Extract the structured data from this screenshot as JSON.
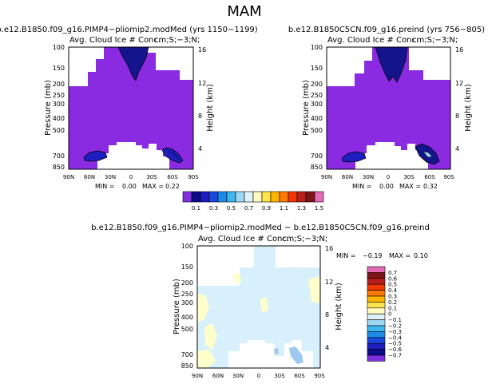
{
  "figure_title": "MAM",
  "chart_data": [
    {
      "type": "heatmap",
      "title": "b.e12.B1850.f09_g16.PIMP4−pliomip2.modMed (yrs 1150−1199)",
      "subtitle": "Avg. Cloud Ice # Conc.",
      "units": "cm;S;−3;N;",
      "x_ticks": [
        "90N",
        "60N",
        "30N",
        "0",
        "30S",
        "60S",
        "90S"
      ],
      "y_ticks": [
        "100",
        "150",
        "200",
        "250",
        "300",
        "400",
        "500",
        "700",
        "850"
      ],
      "ylabel": "Pressure (mb)",
      "y2_ticks": [
        "16",
        "12",
        "8",
        "4"
      ],
      "y2label": "Height (km)",
      "min_label": "MIN =",
      "min": "0.00",
      "max_label": "MAX =",
      "max": "0.22",
      "grid": false
    },
    {
      "type": "heatmap",
      "title": "b.e12.B1850C5CN.f09_g16.preind (yrs 756−805)",
      "subtitle": "Avg. Cloud Ice # Conc.",
      "units": "cm;S;−3;N;",
      "x_ticks": [
        "90N",
        "60N",
        "30N",
        "0",
        "30S",
        "60S",
        "90S"
      ],
      "y_ticks": [
        "100",
        "150",
        "200",
        "250",
        "300",
        "400",
        "500",
        "700",
        "850"
      ],
      "ylabel": "Pressure (mb)",
      "y2_ticks": [
        "16",
        "12",
        "8",
        "4"
      ],
      "y2label": "Height (km)",
      "min_label": "MIN =",
      "min": "0.00",
      "max_label": "MAX =",
      "max": "0.32",
      "grid": false
    },
    {
      "type": "heatmap",
      "title": "b.e12.B1850.f09_g16.PIMP4−pliomip2.modMed − b.e12.B1850C5CN.f09_g16.preind",
      "subtitle": "Avg. Cloud Ice # Conc.",
      "units": "cm;S;−3;N;",
      "x_ticks": [
        "90N",
        "60N",
        "30N",
        "0",
        "30S",
        "60S",
        "90S"
      ],
      "y_ticks": [
        "100",
        "150",
        "200",
        "250",
        "300",
        "400",
        "500",
        "700",
        "850"
      ],
      "ylabel": "Pressure (mb)",
      "y2_ticks": [
        "16",
        "12",
        "8",
        "4"
      ],
      "y2label": "Height (km)",
      "min_label": "MIN =",
      "min": "−0.19",
      "max_label": "MAX =",
      "max": "0.10",
      "grid": false
    }
  ],
  "colorbar_top": {
    "labels": [
      "0.1",
      "0.3",
      "0.5",
      "0.7",
      "0.9",
      "1.1",
      "1.3",
      "1.5"
    ],
    "colors": [
      "#7f2fe0",
      "#0b0b8a",
      "#1e1ebe",
      "#1a47e0",
      "#1c8ce6",
      "#40b6f0",
      "#9ed8f5",
      "#dff2fb",
      "#fffac2",
      "#ffe44e",
      "#ffb400",
      "#ff7a00",
      "#f23800",
      "#b81e1e",
      "#7f1414",
      "#e56ab5"
    ]
  },
  "colorbar_diff": {
    "labels": [
      "0.7",
      "0.6",
      "0.5",
      "0.4",
      "0.3",
      "0.2",
      "0.1",
      "0",
      "−0.1",
      "−0.2",
      "−0.3",
      "−0.4",
      "−0.5",
      "−0.6",
      "−0.7"
    ],
    "colors": [
      "#e56ab5",
      "#7f1414",
      "#b81e1e",
      "#f23800",
      "#ff7a00",
      "#ffb400",
      "#ffe44e",
      "#fffac2",
      "#dff2fb",
      "#9ed8f5",
      "#40b6f0",
      "#1c8ce6",
      "#1a47e0",
      "#1e1ebe",
      "#0b0b8a",
      "#7f2fe0"
    ]
  },
  "colors": {
    "purple_fill": "#8a2be2",
    "dark_blue": "#14148c",
    "diff_light_blue": "#d8f0fb",
    "diff_light_yellow": "#ffffcc",
    "diff_blue": "#9ec8f0"
  }
}
